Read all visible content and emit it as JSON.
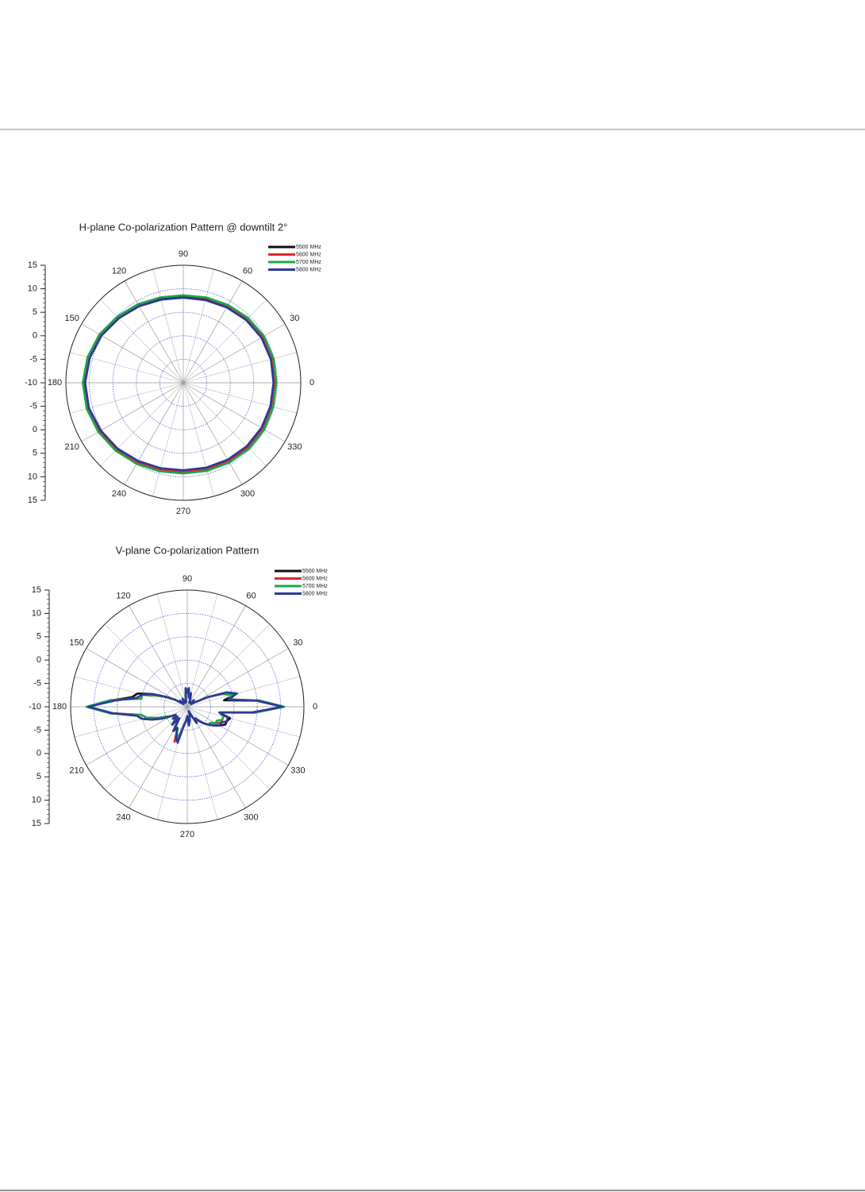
{
  "chart_data": [
    {
      "type": "polar",
      "title": "H-plane Co-polarization Pattern @ downtilt 2°",
      "theta": [
        0,
        15,
        30,
        45,
        60,
        75,
        90,
        105,
        120,
        135,
        150,
        165,
        180,
        195,
        210,
        225,
        240,
        255,
        270,
        285,
        300,
        315,
        330,
        345
      ],
      "rlim": [
        -10,
        15
      ],
      "rticks": [
        -10,
        -5,
        0,
        5,
        10,
        15
      ],
      "thetaticks": [
        0,
        30,
        60,
        90,
        120,
        150,
        180,
        210,
        240,
        270,
        300,
        330
      ],
      "series": [
        {
          "name": "5500 MHz",
          "color": "#111111",
          "values": [
            9.3,
            9.4,
            9.3,
            9.0,
            8.7,
            8.5,
            8.4,
            8.6,
            9.0,
            9.6,
            10.3,
            10.8,
            11.0,
            10.9,
            10.5,
            10.0,
            9.4,
            9.0,
            8.8,
            8.9,
            9.1,
            9.3,
            9.4,
            9.3
          ]
        },
        {
          "name": "5600 MHz",
          "color": "#e0282e",
          "values": [
            9.4,
            9.5,
            9.4,
            9.2,
            8.9,
            8.7,
            8.6,
            8.8,
            9.2,
            9.8,
            10.4,
            10.9,
            11.1,
            11.0,
            10.6,
            10.1,
            9.6,
            9.2,
            9.0,
            9.1,
            9.3,
            9.5,
            9.5,
            9.4
          ]
        },
        {
          "name": "5700 MHz",
          "color": "#1aa84a",
          "values": [
            9.8,
            9.9,
            9.8,
            9.5,
            9.1,
            8.8,
            8.6,
            8.8,
            9.3,
            9.9,
            10.6,
            11.1,
            11.4,
            11.3,
            10.9,
            10.4,
            9.9,
            9.5,
            9.3,
            9.4,
            9.6,
            9.8,
            9.9,
            9.8
          ]
        },
        {
          "name": "5800 MHz",
          "color": "#2b3a9a",
          "values": [
            9.2,
            9.3,
            9.2,
            8.9,
            8.5,
            8.2,
            8.1,
            8.3,
            8.8,
            9.4,
            10.1,
            10.6,
            10.9,
            10.8,
            10.3,
            9.8,
            9.2,
            8.8,
            8.6,
            8.7,
            8.9,
            9.1,
            9.2,
            9.2
          ]
        }
      ]
    },
    {
      "type": "polar",
      "title": "V-plane Co-polarization Pattern",
      "theta": [
        0,
        5,
        10,
        15,
        20,
        25,
        30,
        35,
        40,
        45,
        50,
        55,
        60,
        65,
        70,
        75,
        80,
        85,
        90,
        95,
        100,
        105,
        110,
        115,
        120,
        125,
        130,
        135,
        140,
        145,
        150,
        155,
        160,
        165,
        170,
        175,
        180,
        185,
        190,
        195,
        200,
        205,
        210,
        215,
        220,
        225,
        230,
        235,
        240,
        245,
        250,
        255,
        260,
        265,
        270,
        275,
        280,
        285,
        290,
        295,
        300,
        305,
        310,
        315,
        320,
        325,
        330,
        335,
        340,
        345,
        350,
        355
      ],
      "rlim": [
        -10,
        15
      ],
      "rticks": [
        -10,
        -5,
        0,
        5,
        10,
        15
      ],
      "thetaticks": [
        0,
        30,
        60,
        90,
        120,
        150,
        180,
        210,
        240,
        270,
        300,
        330
      ],
      "series": [
        {
          "name": "5500 MHz",
          "color": "#111111",
          "values": [
            10.5,
            5,
            -2,
            1,
            -1,
            -5,
            -8,
            -9,
            -9,
            -8,
            -9,
            -9,
            -9,
            -9,
            -8,
            -7,
            -8,
            -6,
            -7,
            -6,
            -8,
            -9,
            -9,
            -9,
            -8,
            -9,
            -9,
            -9,
            -8,
            -9,
            -7,
            -5,
            -2,
            1,
            2,
            6,
            11.3,
            6,
            1,
            0,
            -2,
            -4,
            -6,
            -7,
            -6,
            -7,
            -5,
            -7,
            -4,
            -5,
            -3,
            -3,
            -6,
            -7,
            -8,
            -6,
            -7,
            -8,
            -9,
            -8,
            -6,
            -7,
            -6,
            -5,
            -4,
            -3,
            -2,
            -1,
            -1,
            -0.5,
            -3,
            4
          ]
        },
        {
          "name": "5600 MHz",
          "color": "#e0282e",
          "values": [
            10.6,
            5,
            -1,
            0,
            -2,
            -5,
            -8,
            -9,
            -9,
            -8,
            -9,
            -9,
            -9,
            -9,
            -8,
            -7,
            -8,
            -6,
            -7,
            -6,
            -8,
            -9,
            -9,
            -9,
            -8,
            -9,
            -9,
            -9,
            -8,
            -9,
            -7,
            -5,
            -3,
            0,
            1,
            6,
            11.4,
            6,
            0,
            -1,
            -3,
            -4,
            -6,
            -7,
            -6,
            -7,
            -5,
            -7,
            -4,
            -5,
            -2,
            -4,
            -6,
            -7,
            -8,
            -6,
            -7,
            -8,
            -9,
            -8,
            -6,
            -7,
            -6,
            -5,
            -4,
            -4,
            -3,
            -2,
            -2,
            -2,
            -3,
            4
          ]
        },
        {
          "name": "5700 MHz",
          "color": "#1aa84a",
          "values": [
            10.8,
            5.5,
            -1,
            0,
            -2,
            -5,
            -8,
            -9,
            -9,
            -8,
            -9,
            -9,
            -9,
            -9,
            -8,
            -7,
            -8,
            -6,
            -7,
            -6,
            -8,
            -9,
            -9,
            -9,
            -8,
            -9,
            -9,
            -9,
            -8,
            -9,
            -7,
            -5,
            -3,
            0,
            0,
            6.5,
            11.6,
            6.5,
            0,
            -1,
            -3,
            -5,
            -6,
            -7,
            -6,
            -7,
            -5,
            -7,
            -5,
            -5,
            -3,
            -4,
            -6,
            -7,
            -8,
            -6,
            -7,
            -8,
            -9,
            -8,
            -6,
            -7,
            -6,
            -5,
            -4,
            -4,
            -3,
            -3,
            -2,
            -2,
            -3,
            4.5
          ]
        },
        {
          "name": "5800 MHz",
          "color": "#2b3a9a",
          "values": [
            10.4,
            5,
            -1,
            1,
            -1,
            -5,
            -8,
            -9,
            -9,
            -8,
            -9,
            -9,
            -9,
            -9,
            -8,
            -7,
            -8,
            -6,
            -7,
            -6,
            -8,
            -9,
            -9,
            -9,
            -8,
            -9,
            -9,
            -9,
            -8,
            -9,
            -7,
            -5,
            -2,
            0,
            1,
            5.5,
            11.2,
            6,
            1,
            0,
            -2,
            -4,
            -6,
            -7,
            -6,
            -7,
            -5,
            -7,
            -4,
            -5,
            -3,
            -2,
            -6,
            -7,
            -8,
            -6,
            -7,
            -8,
            -9,
            -8,
            -6,
            -7,
            -6,
            -5,
            -4,
            -3,
            -2,
            -2,
            -1,
            -1,
            -3,
            4
          ]
        }
      ]
    }
  ]
}
